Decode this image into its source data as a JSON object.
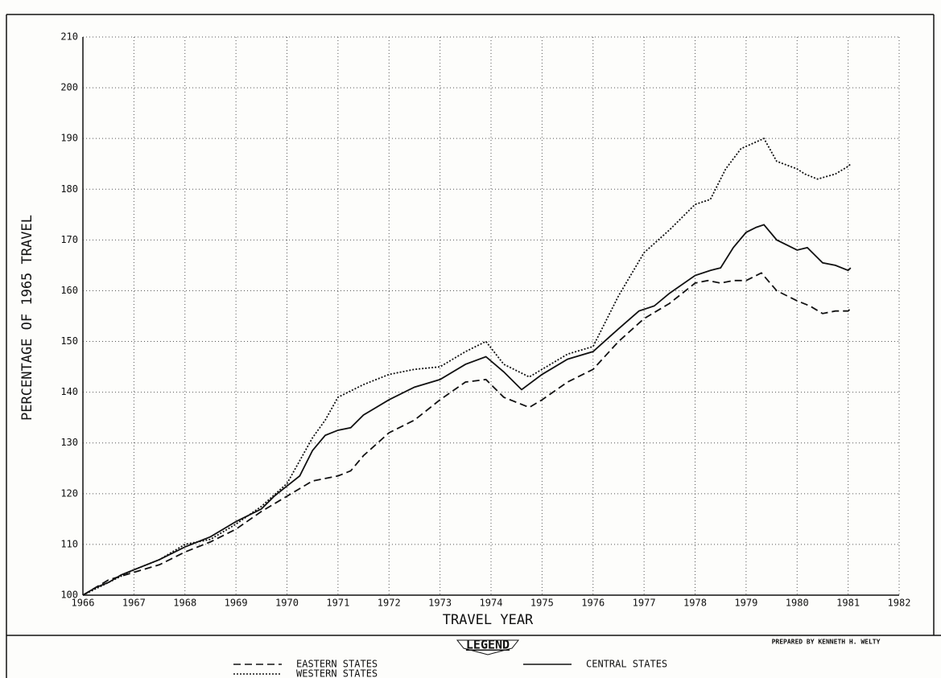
{
  "chart_data": {
    "type": "line",
    "x_label": "TRAVEL YEAR",
    "y_label": "PERCENTAGE OF 1965 TRAVEL",
    "legend_title": "LEGEND",
    "credit": "PREPARED BY KENNETH H. WELTY",
    "xlim": [
      1966,
      1982
    ],
    "xticks": [
      1966,
      1967,
      1968,
      1969,
      1970,
      1971,
      1972,
      1973,
      1974,
      1975,
      1976,
      1977,
      1978,
      1979,
      1980,
      1981,
      1982
    ],
    "ylim": [
      100,
      210
    ],
    "yticks": [
      100,
      110,
      120,
      130,
      140,
      150,
      160,
      170,
      180,
      190,
      200,
      210
    ],
    "grid": true,
    "series": [
      {
        "name": "EASTERN STATES",
        "color": "#111111",
        "dash": "dashed",
        "x": [
          1966,
          1966.5,
          1967,
          1967.5,
          1968,
          1968.5,
          1969,
          1969.5,
          1970,
          1970.5,
          1971,
          1971.25,
          1971.5,
          1972,
          1972.5,
          1973,
          1973.5,
          1973.9,
          1974.25,
          1974.75,
          1975,
          1975.5,
          1976,
          1976.5,
          1977,
          1977.5,
          1978,
          1978.25,
          1978.5,
          1978.75,
          1979,
          1979.3,
          1979.6,
          1980,
          1980.25,
          1980.5,
          1980.75,
          1981,
          1981.05
        ],
        "values": [
          100,
          103,
          104.5,
          106,
          108.5,
          110.5,
          113,
          116.5,
          119.5,
          122.5,
          123.5,
          124.5,
          127.5,
          132,
          134.5,
          138.5,
          142,
          142.5,
          139,
          137,
          138.5,
          142,
          144.5,
          150,
          154.5,
          157.5,
          161.5,
          162,
          161.5,
          162,
          162,
          163.5,
          160,
          158,
          157,
          155.5,
          156,
          156,
          156.5
        ]
      },
      {
        "name": "WESTERN STATES",
        "color": "#111111",
        "dash": "dotted",
        "x": [
          1966,
          1966.5,
          1967,
          1967.5,
          1968,
          1968.5,
          1969,
          1969.5,
          1970,
          1970.5,
          1970.75,
          1971,
          1971.5,
          1972,
          1972.5,
          1973,
          1973.5,
          1973.9,
          1974.25,
          1974.75,
          1975,
          1975.5,
          1976,
          1976.5,
          1977,
          1977.5,
          1978,
          1978.3,
          1978.6,
          1978.9,
          1979.35,
          1979.6,
          1980,
          1980.15,
          1980.4,
          1980.75,
          1981,
          1981.05
        ],
        "values": [
          100,
          102.5,
          105,
          107,
          110,
          111,
          114,
          117.5,
          122,
          131,
          134.5,
          139,
          141.5,
          143.5,
          144.5,
          145,
          148,
          150,
          145.5,
          143,
          144.5,
          147.5,
          149,
          159,
          167.5,
          172,
          177,
          178,
          184,
          188,
          190,
          185.5,
          184,
          183,
          182,
          183,
          184.5,
          185
        ]
      },
      {
        "name": "CENTRAL STATES",
        "color": "#111111",
        "dash": "solid",
        "x": [
          1966,
          1966.25,
          1966.5,
          1966.75,
          1967,
          1967.5,
          1968,
          1968.5,
          1969,
          1969.5,
          1969.75,
          1970,
          1970.25,
          1970.5,
          1970.75,
          1971,
          1971.25,
          1971.5,
          1972,
          1972.5,
          1973,
          1973.5,
          1973.9,
          1974.25,
          1974.6,
          1975,
          1975.5,
          1976,
          1976.5,
          1976.9,
          1977.2,
          1977.5,
          1978,
          1978.3,
          1978.5,
          1978.75,
          1979,
          1979.2,
          1979.35,
          1979.6,
          1980,
          1980.2,
          1980.5,
          1980.75,
          1981,
          1981.05
        ],
        "values": [
          100,
          101.5,
          102.5,
          104,
          105,
          107,
          109.5,
          111.5,
          114.5,
          117,
          119.5,
          121.5,
          123.5,
          128.5,
          131.5,
          132.5,
          133,
          135.5,
          138.5,
          141,
          142.5,
          145.5,
          147,
          144,
          140.5,
          143.5,
          146.5,
          148,
          152.5,
          156,
          157,
          159.5,
          163,
          164,
          164.5,
          168.5,
          171.5,
          172.5,
          173,
          170,
          168,
          168.5,
          165.5,
          165,
          164,
          164.5
        ]
      }
    ]
  }
}
